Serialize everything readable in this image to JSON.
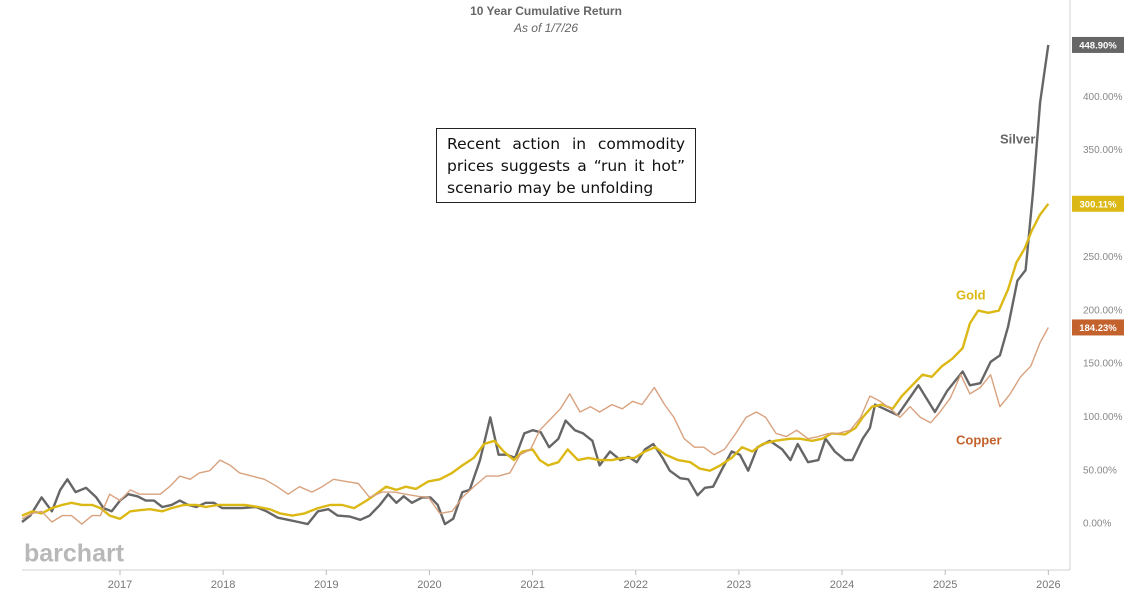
{
  "chart_data": {
    "type": "line",
    "title": "10 Year Cumulative Return",
    "subtitle": "As of 1/7/26",
    "annotation": "Recent action in commodity prices suggests a “run it hot” scenario may be unfolding",
    "watermark": "barchart",
    "xlim": [
      2016.05,
      2026.21
    ],
    "xticks": [
      2017,
      2018,
      2019,
      2020,
      2021,
      2022,
      2023,
      2024,
      2025,
      2026
    ],
    "ylim": [
      -43,
      491
    ],
    "yticks": [
      {
        "value": 0,
        "label": "0.00%"
      },
      {
        "value": 50,
        "label": "50.00%"
      },
      {
        "value": 100,
        "label": "100.00%"
      },
      {
        "value": 150,
        "label": "150.00%"
      },
      {
        "value": 200,
        "label": "200.00%"
      },
      {
        "value": 250,
        "label": "250.00%"
      },
      {
        "value": 300,
        "label": "300.00%"
      },
      {
        "value": 350,
        "label": "350.00%"
      },
      {
        "value": 400,
        "label": "400.00%"
      }
    ],
    "grid": false,
    "series": [
      {
        "name": "Silver",
        "color": "#666666",
        "end_label": "448.90%",
        "x": [
          2016.05,
          2016.13,
          2016.24,
          2016.34,
          2016.42,
          2016.49,
          2016.57,
          2016.67,
          2016.77,
          2016.84,
          2016.92,
          2017.0,
          2017.08,
          2017.17,
          2017.25,
          2017.33,
          2017.41,
          2017.5,
          2017.58,
          2017.66,
          2017.74,
          2017.83,
          2017.91,
          2017.99,
          2018.09,
          2018.18,
          2018.32,
          2018.42,
          2018.53,
          2018.63,
          2018.73,
          2018.82,
          2018.92,
          2019.02,
          2019.11,
          2019.23,
          2019.33,
          2019.42,
          2019.52,
          2019.6,
          2019.68,
          2019.75,
          2019.83,
          2019.93,
          2020.01,
          2020.08,
          2020.15,
          2020.23,
          2020.32,
          2020.39,
          2020.49,
          2020.59,
          2020.67,
          2020.75,
          2020.83,
          2020.92,
          2021.0,
          2021.08,
          2021.16,
          2021.25,
          2021.32,
          2021.41,
          2021.49,
          2021.58,
          2021.65,
          2021.75,
          2021.85,
          2021.93,
          2022.01,
          2022.09,
          2022.17,
          2022.26,
          2022.33,
          2022.43,
          2022.51,
          2022.6,
          2022.67,
          2022.75,
          2022.84,
          2022.93,
          2023.01,
          2023.09,
          2023.18,
          2023.3,
          2023.42,
          2023.5,
          2023.57,
          2023.67,
          2023.77,
          2023.84,
          2023.93,
          2024.03,
          2024.1,
          2024.2,
          2024.27,
          2024.32,
          2024.54,
          2024.74,
          2024.9,
          2025.02,
          2025.17,
          2025.24,
          2025.34,
          2025.44,
          2025.53,
          2025.61,
          2025.7,
          2025.78,
          2025.85,
          2025.92,
          2026.0
        ],
        "values": [
          2,
          8,
          25,
          12,
          32,
          42,
          30,
          34,
          25,
          15,
          12,
          22,
          28,
          26,
          22,
          22,
          16,
          18,
          22,
          18,
          16,
          20,
          20,
          15,
          15,
          15,
          16,
          12,
          6,
          4,
          2,
          0,
          12,
          14,
          8,
          7,
          4,
          8,
          18,
          28,
          20,
          26,
          20,
          25,
          25,
          18,
          0,
          5,
          30,
          32,
          60,
          100,
          65,
          65,
          62,
          85,
          88,
          86,
          72,
          80,
          97,
          88,
          85,
          78,
          55,
          68,
          60,
          63,
          58,
          70,
          75,
          62,
          50,
          43,
          42,
          27,
          34,
          35,
          52,
          68,
          65,
          50,
          72,
          78,
          70,
          60,
          75,
          58,
          60,
          80,
          68,
          60,
          60,
          80,
          90,
          112,
          102,
          130,
          105,
          125,
          143,
          130,
          132,
          152,
          158,
          185,
          228,
          238,
          310,
          395,
          448.9
        ]
      },
      {
        "name": "Gold",
        "color": "#dcb815",
        "end_label": "300.11%",
        "x": [
          2016.05,
          2016.15,
          2016.24,
          2016.34,
          2016.44,
          2016.53,
          2016.63,
          2016.73,
          2016.81,
          2016.9,
          2017.0,
          2017.1,
          2017.19,
          2017.29,
          2017.41,
          2017.5,
          2017.62,
          2017.74,
          2017.83,
          2017.95,
          2018.07,
          2018.21,
          2018.34,
          2018.45,
          2018.55,
          2018.67,
          2018.79,
          2018.92,
          2019.04,
          2019.15,
          2019.27,
          2019.39,
          2019.48,
          2019.58,
          2019.68,
          2019.77,
          2019.87,
          2019.99,
          2020.1,
          2020.22,
          2020.32,
          2020.43,
          2020.53,
          2020.63,
          2020.72,
          2020.82,
          2020.9,
          2021.0,
          2021.07,
          2021.15,
          2021.25,
          2021.34,
          2021.44,
          2021.54,
          2021.65,
          2021.77,
          2021.87,
          2021.99,
          2022.09,
          2022.19,
          2022.29,
          2022.41,
          2022.53,
          2022.62,
          2022.72,
          2022.82,
          2022.93,
          2023.03,
          2023.13,
          2023.23,
          2023.35,
          2023.5,
          2023.59,
          2023.71,
          2023.81,
          2023.9,
          2024.03,
          2024.13,
          2024.2,
          2024.29,
          2024.39,
          2024.49,
          2024.58,
          2024.68,
          2024.78,
          2024.87,
          2024.97,
          2025.07,
          2025.17,
          2025.24,
          2025.32,
          2025.42,
          2025.52,
          2025.61,
          2025.69,
          2025.77,
          2025.84,
          2025.92,
          2026.0
        ],
        "values": [
          8,
          12,
          10,
          15,
          18,
          20,
          18,
          18,
          15,
          8,
          5,
          12,
          13,
          14,
          12,
          15,
          18,
          18,
          16,
          18,
          18,
          18,
          16,
          14,
          10,
          8,
          10,
          15,
          18,
          18,
          15,
          22,
          28,
          35,
          32,
          35,
          33,
          40,
          42,
          48,
          55,
          62,
          75,
          78,
          68,
          60,
          68,
          70,
          60,
          55,
          58,
          70,
          60,
          62,
          60,
          60,
          62,
          62,
          68,
          72,
          65,
          60,
          58,
          52,
          50,
          55,
          62,
          72,
          68,
          75,
          78,
          80,
          80,
          78,
          80,
          85,
          84,
          90,
          100,
          110,
          112,
          108,
          120,
          130,
          140,
          138,
          148,
          155,
          165,
          188,
          200,
          198,
          200,
          220,
          245,
          258,
          275,
          290,
          300.11
        ]
      },
      {
        "name": "Copper",
        "color": "#c4622d",
        "line_color": "#d9a27f",
        "end_label": "184.23%",
        "x": [
          2016.05,
          2016.15,
          2016.24,
          2016.34,
          2016.44,
          2016.53,
          2016.63,
          2016.73,
          2016.81,
          2016.9,
          2017.0,
          2017.1,
          2017.19,
          2017.29,
          2017.39,
          2017.48,
          2017.58,
          2017.68,
          2017.77,
          2017.87,
          2017.97,
          2018.07,
          2018.16,
          2018.28,
          2018.4,
          2018.51,
          2018.63,
          2018.74,
          2018.86,
          2018.96,
          2019.07,
          2019.19,
          2019.31,
          2019.42,
          2019.54,
          2019.66,
          2019.77,
          2019.89,
          2019.99,
          2020.1,
          2020.22,
          2020.32,
          2020.43,
          2020.55,
          2020.67,
          2020.78,
          2020.88,
          2020.98,
          2021.07,
          2021.17,
          2021.27,
          2021.36,
          2021.46,
          2021.56,
          2021.65,
          2021.77,
          2021.87,
          2021.97,
          2022.06,
          2022.18,
          2022.28,
          2022.37,
          2022.47,
          2022.57,
          2022.66,
          2022.76,
          2022.86,
          2022.97,
          2023.07,
          2023.17,
          2023.26,
          2023.36,
          2023.46,
          2023.56,
          2023.67,
          2023.77,
          2023.87,
          2023.96,
          2024.08,
          2024.18,
          2024.27,
          2024.37,
          2024.47,
          2024.56,
          2024.66,
          2024.76,
          2024.86,
          2024.95,
          2025.05,
          2025.15,
          2025.24,
          2025.34,
          2025.44,
          2025.53,
          2025.63,
          2025.73,
          2025.83,
          2025.92,
          2026.0
        ],
        "values": [
          5,
          10,
          12,
          2,
          8,
          8,
          0,
          8,
          8,
          28,
          22,
          32,
          28,
          28,
          28,
          35,
          45,
          42,
          48,
          50,
          60,
          55,
          48,
          45,
          42,
          36,
          28,
          35,
          30,
          35,
          42,
          40,
          38,
          25,
          30,
          30,
          28,
          26,
          25,
          10,
          12,
          25,
          35,
          45,
          45,
          48,
          65,
          70,
          88,
          98,
          108,
          122,
          105,
          110,
          105,
          112,
          108,
          115,
          112,
          128,
          112,
          100,
          80,
          72,
          72,
          65,
          70,
          85,
          100,
          105,
          100,
          85,
          82,
          88,
          80,
          82,
          85,
          85,
          88,
          100,
          120,
          115,
          108,
          100,
          110,
          100,
          95,
          105,
          118,
          140,
          122,
          128,
          140,
          110,
          122,
          138,
          148,
          170,
          184.23
        ]
      }
    ]
  }
}
